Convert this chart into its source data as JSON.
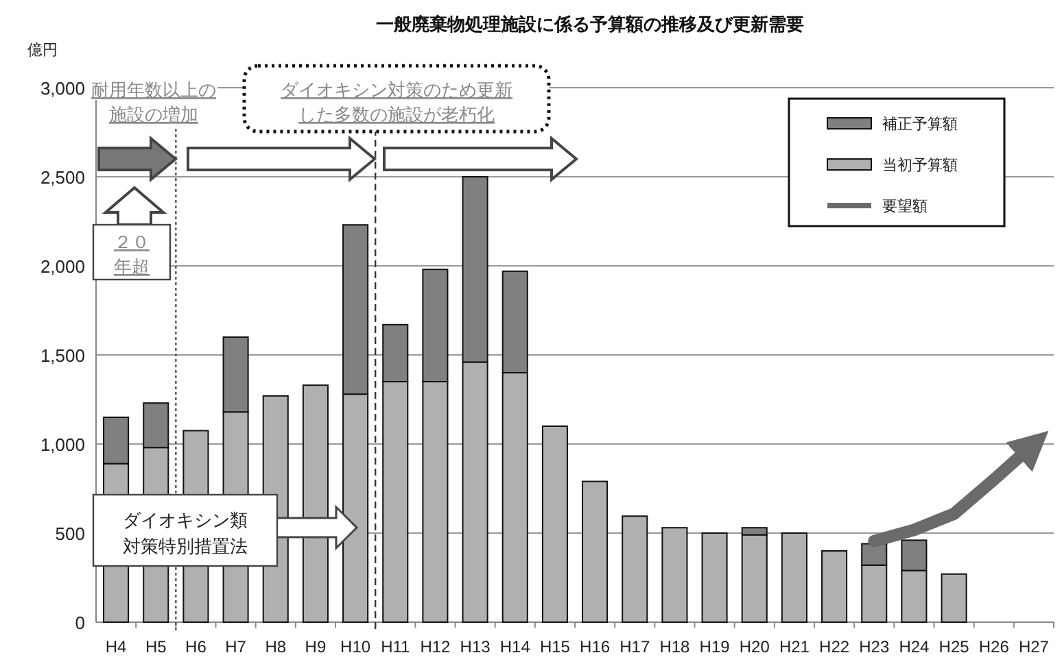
{
  "chart_data": {
    "type": "bar",
    "stacked": true,
    "title": "一般廃棄物処理施設に係る予算額の推移及び更新需要",
    "ylabel": "億円",
    "categories": [
      "H4",
      "H5",
      "H6",
      "H7",
      "H8",
      "H9",
      "H10",
      "H11",
      "H12",
      "H13",
      "H14",
      "H15",
      "H16",
      "H17",
      "H18",
      "H19",
      "H20",
      "H21",
      "H22",
      "H23",
      "H24",
      "H25",
      "H26",
      "H27"
    ],
    "series": [
      {
        "name": "当初予算額",
        "color": "#b0b0b0",
        "values": [
          890,
          980,
          1075,
          1180,
          1270,
          1330,
          1280,
          1350,
          1350,
          1460,
          1400,
          1100,
          790,
          595,
          530,
          500,
          490,
          500,
          400,
          320,
          290,
          270,
          null,
          null
        ]
      },
      {
        "name": "補正予算額",
        "color": "#808080",
        "values": [
          260,
          250,
          null,
          420,
          null,
          null,
          950,
          320,
          630,
          1040,
          570,
          null,
          null,
          null,
          null,
          null,
          40,
          null,
          null,
          120,
          170,
          null,
          null,
          null
        ]
      },
      {
        "name": "要望額",
        "type": "line",
        "color": "#6a6a6a",
        "values": [
          null,
          null,
          null,
          null,
          null,
          null,
          null,
          null,
          null,
          null,
          null,
          null,
          null,
          null,
          null,
          null,
          null,
          null,
          null,
          455,
          518,
          608,
          800,
          1000
        ]
      }
    ],
    "ylim": [
      0,
      3000
    ],
    "yticks": [
      {
        "value": 0,
        "label": "0"
      },
      {
        "value": 500,
        "label": "500"
      },
      {
        "value": 1000,
        "label": "1,000"
      },
      {
        "value": 1500,
        "label": "1,500"
      },
      {
        "value": 2000,
        "label": "2,000"
      },
      {
        "value": 2500,
        "label": "2,500"
      },
      {
        "value": 3000,
        "label": "3,000"
      }
    ],
    "grid": "y",
    "legend": "top right",
    "ref_lines": [
      {
        "axis": "x",
        "value": "H5",
        "color": "#555555",
        "line_style": "dotted"
      },
      {
        "axis": "x",
        "value": "H10",
        "color": "#333333",
        "line_style": "dashed"
      }
    ],
    "annotations": [
      "耐用年数以上の",
      "施設の増加",
      "ダイオキシン対策のため更新",
      "した多数の施設が老朽化",
      "２０",
      "年超",
      "ダイオキシン類",
      "対策特別措置法"
    ]
  }
}
